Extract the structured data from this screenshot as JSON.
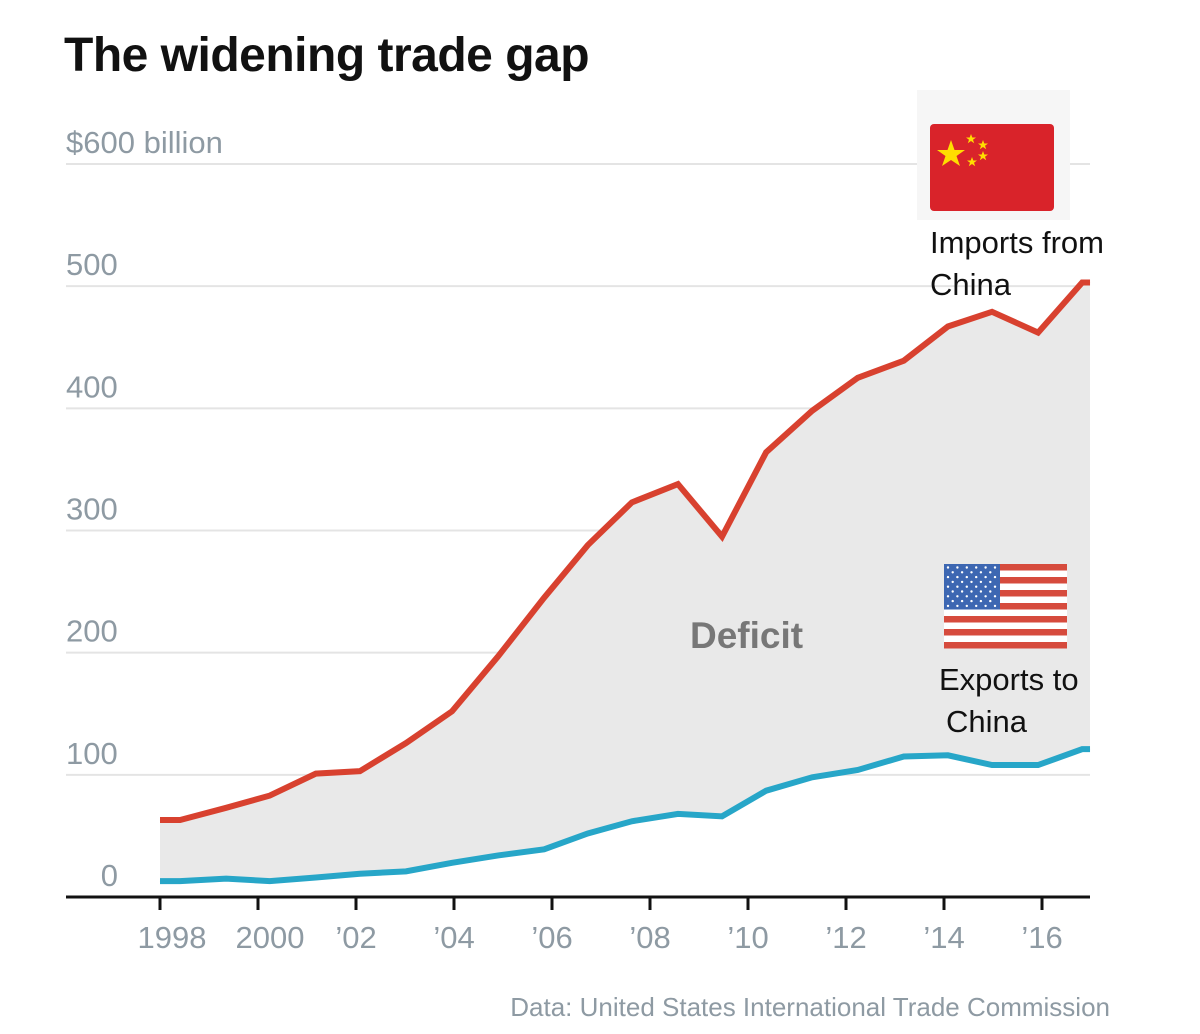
{
  "chart_data": {
    "type": "area",
    "title": "The widening trade gap",
    "ylabel": "",
    "xlabel": "",
    "ylim": [
      0,
      600
    ],
    "xlim": [
      1996.1,
      2017
    ],
    "grid": true,
    "y_ticks": [
      {
        "value": 0,
        "label": "0"
      },
      {
        "value": 100,
        "label": "100"
      },
      {
        "value": 200,
        "label": "200"
      },
      {
        "value": 300,
        "label": "300"
      },
      {
        "value": 400,
        "label": "400"
      },
      {
        "value": 500,
        "label": "500"
      },
      {
        "value": 600,
        "label": "$600 billion"
      }
    ],
    "x_ticks": [
      {
        "value": 1998,
        "label": "1998"
      },
      {
        "value": 2000,
        "label": "2000"
      },
      {
        "value": 2002,
        "label": "’02"
      },
      {
        "value": 2004,
        "label": "’04"
      },
      {
        "value": 2006,
        "label": "’06"
      },
      {
        "value": 2008,
        "label": "’08"
      },
      {
        "value": 2010,
        "label": "’10"
      },
      {
        "value": 2012,
        "label": "’12"
      },
      {
        "value": 2014,
        "label": "’14"
      },
      {
        "value": 2016,
        "label": "’16"
      }
    ],
    "x": [
      1998,
      1998.41,
      1999.35,
      2000.24,
      2001.18,
      2002.08,
      2003.02,
      2003.96,
      2004.9,
      2005.84,
      2006.73,
      2007.63,
      2008.57,
      2009.47,
      2010.37,
      2011.31,
      2012.24,
      2013.18,
      2014.08,
      2014.98,
      2015.92,
      2016.82,
      2016.98
    ],
    "series": [
      {
        "name": "Imports from China",
        "color": "#d8412f",
        "values": [
          63,
          63,
          73,
          83,
          101,
          103,
          126,
          152,
          197,
          245,
          288,
          323,
          338,
          295,
          364,
          398,
          425,
          439,
          467,
          479,
          462,
          503,
          503
        ]
      },
      {
        "name": "Exports to China",
        "color": "#27a6c8",
        "values": [
          13,
          13,
          15,
          13,
          16,
          19,
          21,
          28,
          34,
          39,
          52,
          62,
          68,
          66,
          87,
          98,
          104,
          115,
          116,
          108,
          108,
          121,
          121
        ]
      }
    ],
    "fill_label": "Deficit",
    "fill_color": "#e9e9e9",
    "annotations": {
      "imports_line1": "Imports from",
      "imports_line2": "China",
      "exports_line1": "Exports to",
      "exports_line2": "China"
    },
    "source": "Data: United States International Trade Commission"
  },
  "flags": {
    "china": "china-flag-icon",
    "usa": "usa-flag-icon"
  }
}
